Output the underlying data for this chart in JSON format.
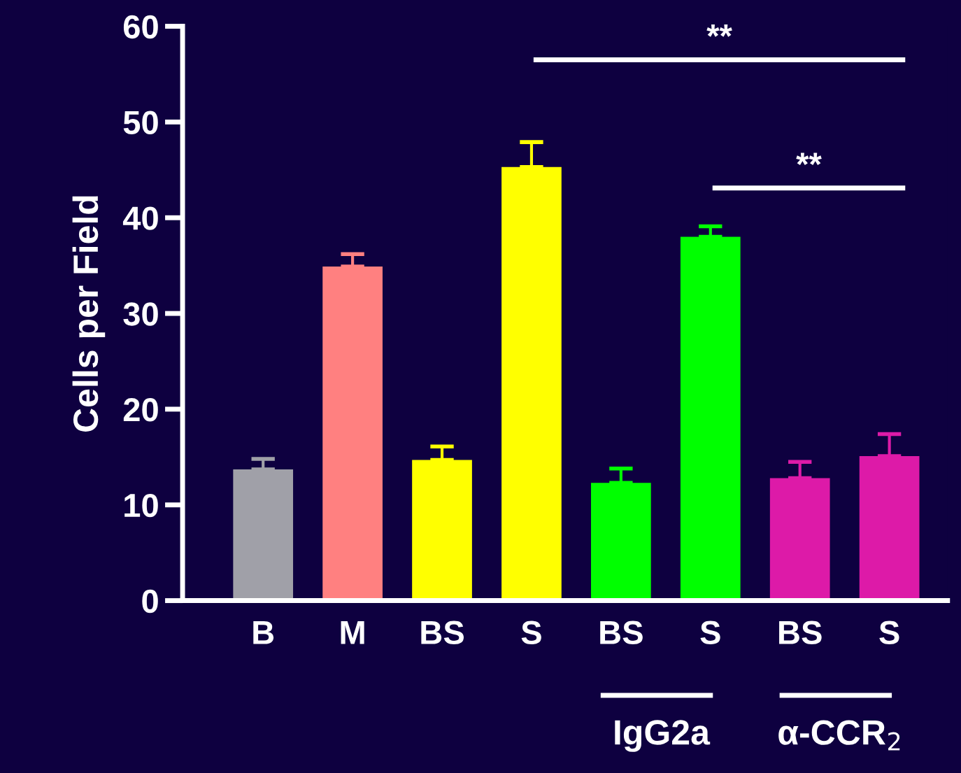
{
  "chart_data": {
    "type": "bar",
    "ylabel": "Cells per Field",
    "categories": [
      "B",
      "M",
      "BS",
      "S",
      "BS",
      "S",
      "BS",
      "S"
    ],
    "values": [
      13.7,
      34.9,
      14.7,
      45.3,
      12.3,
      38.0,
      12.8,
      15.1
    ],
    "colors": [
      "#a0a0a8",
      "#ff8080",
      "#ffff00",
      "#ffff00",
      "#00ff00",
      "#00ff00",
      "#dd1aa8",
      "#dd1aa8"
    ],
    "errors": [
      [
        13.7,
        14.8
      ],
      [
        34.9,
        36.2
      ],
      [
        14.7,
        16.1
      ],
      [
        45.3,
        47.9
      ],
      [
        12.3,
        13.8
      ],
      [
        38.0,
        39.1
      ],
      [
        12.8,
        14.5
      ],
      [
        15.1,
        17.4
      ]
    ],
    "ylim": [
      0,
      60
    ],
    "yticks": [
      0,
      10,
      20,
      30,
      40,
      50,
      60
    ],
    "grid": false,
    "annotations": [
      "**",
      "**",
      "IgG2a",
      "α-CCR$_{2}$"
    ]
  }
}
